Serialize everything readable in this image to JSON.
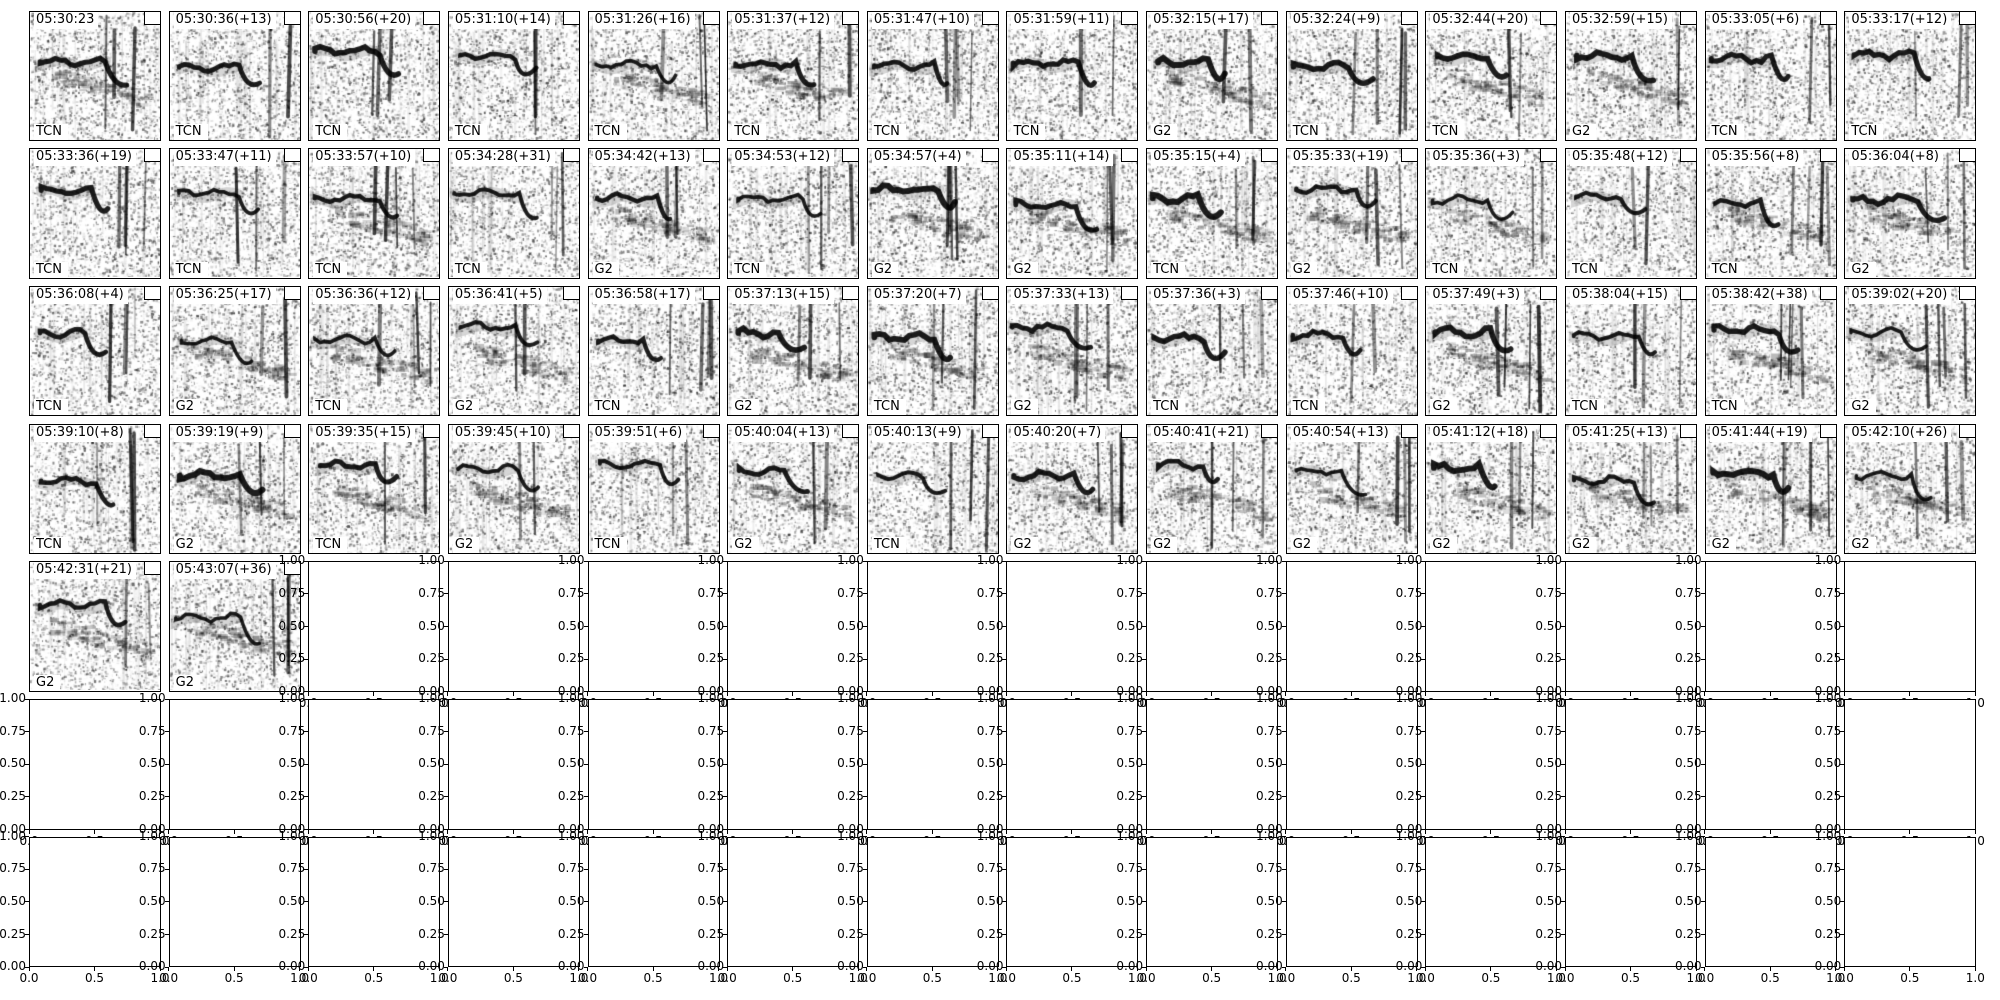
{
  "figure": {
    "background": "#ffffff",
    "frame_color": "#000000",
    "text_color": "#000000",
    "rows": 7,
    "cols": 14,
    "spectrogram_panel_count": 58,
    "empty_panel_count": 40
  },
  "panels": [
    {
      "title": "05:30:23",
      "label": "TCN"
    },
    {
      "title": "05:30:36(+13)",
      "label": "TCN"
    },
    {
      "title": "05:30:56(+20)",
      "label": "TCN"
    },
    {
      "title": "05:31:10(+14)",
      "label": "TCN"
    },
    {
      "title": "05:31:26(+16)",
      "label": "TCN"
    },
    {
      "title": "05:31:37(+12)",
      "label": "TCN"
    },
    {
      "title": "05:31:47(+10)",
      "label": "TCN"
    },
    {
      "title": "05:31:59(+11)",
      "label": "TCN"
    },
    {
      "title": "05:32:15(+17)",
      "label": "G2"
    },
    {
      "title": "05:32:24(+9)",
      "label": "TCN"
    },
    {
      "title": "05:32:44(+20)",
      "label": "TCN"
    },
    {
      "title": "05:32:59(+15)",
      "label": "G2"
    },
    {
      "title": "05:33:05(+6)",
      "label": "TCN"
    },
    {
      "title": "05:33:17(+12)",
      "label": "TCN"
    },
    {
      "title": "05:33:36(+19)",
      "label": "TCN"
    },
    {
      "title": "05:33:47(+11)",
      "label": "TCN"
    },
    {
      "title": "05:33:57(+10)",
      "label": "TCN"
    },
    {
      "title": "05:34:28(+31)",
      "label": "TCN"
    },
    {
      "title": "05:34:42(+13)",
      "label": "G2"
    },
    {
      "title": "05:34:53(+12)",
      "label": "TCN"
    },
    {
      "title": "05:34:57(+4)",
      "label": "G2"
    },
    {
      "title": "05:35:11(+14)",
      "label": "G2"
    },
    {
      "title": "05:35:15(+4)",
      "label": "TCN"
    },
    {
      "title": "05:35:33(+19)",
      "label": "G2"
    },
    {
      "title": "05:35:36(+3)",
      "label": "TCN"
    },
    {
      "title": "05:35:48(+12)",
      "label": "TCN"
    },
    {
      "title": "05:35:56(+8)",
      "label": "TCN"
    },
    {
      "title": "05:36:04(+8)",
      "label": "G2"
    },
    {
      "title": "05:36:08(+4)",
      "label": "TCN"
    },
    {
      "title": "05:36:25(+17)",
      "label": "G2"
    },
    {
      "title": "05:36:36(+12)",
      "label": "TCN"
    },
    {
      "title": "05:36:41(+5)",
      "label": "G2"
    },
    {
      "title": "05:36:58(+17)",
      "label": "TCN"
    },
    {
      "title": "05:37:13(+15)",
      "label": "G2"
    },
    {
      "title": "05:37:20(+7)",
      "label": "TCN"
    },
    {
      "title": "05:37:33(+13)",
      "label": "G2"
    },
    {
      "title": "05:37:36(+3)",
      "label": "TCN"
    },
    {
      "title": "05:37:46(+10)",
      "label": "TCN"
    },
    {
      "title": "05:37:49(+3)",
      "label": "G2"
    },
    {
      "title": "05:38:04(+15)",
      "label": "TCN"
    },
    {
      "title": "05:38:42(+38)",
      "label": "TCN"
    },
    {
      "title": "05:39:02(+20)",
      "label": "G2"
    },
    {
      "title": "05:39:10(+8)",
      "label": "TCN"
    },
    {
      "title": "05:39:19(+9)",
      "label": "G2"
    },
    {
      "title": "05:39:35(+15)",
      "label": "TCN"
    },
    {
      "title": "05:39:45(+10)",
      "label": "G2"
    },
    {
      "title": "05:39:51(+6)",
      "label": "TCN"
    },
    {
      "title": "05:40:04(+13)",
      "label": "G2"
    },
    {
      "title": "05:40:13(+9)",
      "label": "TCN"
    },
    {
      "title": "05:40:20(+7)",
      "label": "G2"
    },
    {
      "title": "05:40:41(+21)",
      "label": "G2"
    },
    {
      "title": "05:40:54(+13)",
      "label": "G2"
    },
    {
      "title": "05:41:12(+18)",
      "label": "G2"
    },
    {
      "title": "05:41:25(+13)",
      "label": "G2"
    },
    {
      "title": "05:41:44(+19)",
      "label": "G2"
    },
    {
      "title": "05:42:10(+26)",
      "label": "G2"
    },
    {
      "title": "05:42:31(+21)",
      "label": "G2"
    },
    {
      "title": "05:43:07(+36)",
      "label": "G2"
    }
  ],
  "empty_axes": {
    "y_tick_labels": [
      "1.00",
      "0.75",
      "0.50",
      "0.25",
      "0.00"
    ],
    "x_tick_labels": [
      "0.0",
      "0.5",
      "1.0"
    ],
    "ylim": [
      0,
      1
    ],
    "xlim": [
      0,
      1
    ]
  },
  "chart_data": {
    "type": "heatmap",
    "description": "Grid of 58 grayscale spectrogram thumbnails (bird-call detections) followed by 40 empty axes",
    "subplot_grid": {
      "rows": 7,
      "cols": 14
    },
    "subplots": [
      {
        "title": "05:30:23",
        "class": "TCN"
      },
      {
        "title": "05:30:36(+13)",
        "class": "TCN"
      },
      {
        "title": "05:30:56(+20)",
        "class": "TCN"
      },
      {
        "title": "05:31:10(+14)",
        "class": "TCN"
      },
      {
        "title": "05:31:26(+16)",
        "class": "TCN"
      },
      {
        "title": "05:31:37(+12)",
        "class": "TCN"
      },
      {
        "title": "05:31:47(+10)",
        "class": "TCN"
      },
      {
        "title": "05:31:59(+11)",
        "class": "TCN"
      },
      {
        "title": "05:32:15(+17)",
        "class": "G2"
      },
      {
        "title": "05:32:24(+9)",
        "class": "TCN"
      },
      {
        "title": "05:32:44(+20)",
        "class": "TCN"
      },
      {
        "title": "05:32:59(+15)",
        "class": "G2"
      },
      {
        "title": "05:33:05(+6)",
        "class": "TCN"
      },
      {
        "title": "05:33:17(+12)",
        "class": "TCN"
      },
      {
        "title": "05:33:36(+19)",
        "class": "TCN"
      },
      {
        "title": "05:33:47(+11)",
        "class": "TCN"
      },
      {
        "title": "05:33:57(+10)",
        "class": "TCN"
      },
      {
        "title": "05:34:28(+31)",
        "class": "TCN"
      },
      {
        "title": "05:34:42(+13)",
        "class": "G2"
      },
      {
        "title": "05:34:53(+12)",
        "class": "TCN"
      },
      {
        "title": "05:34:57(+4)",
        "class": "G2"
      },
      {
        "title": "05:35:11(+14)",
        "class": "G2"
      },
      {
        "title": "05:35:15(+4)",
        "class": "TCN"
      },
      {
        "title": "05:35:33(+19)",
        "class": "G2"
      },
      {
        "title": "05:35:36(+3)",
        "class": "TCN"
      },
      {
        "title": "05:35:48(+12)",
        "class": "TCN"
      },
      {
        "title": "05:35:56(+8)",
        "class": "TCN"
      },
      {
        "title": "05:36:04(+8)",
        "class": "G2"
      },
      {
        "title": "05:36:08(+4)",
        "class": "TCN"
      },
      {
        "title": "05:36:25(+17)",
        "class": "G2"
      },
      {
        "title": "05:36:36(+12)",
        "class": "TCN"
      },
      {
        "title": "05:36:41(+5)",
        "class": "G2"
      },
      {
        "title": "05:36:58(+17)",
        "class": "TCN"
      },
      {
        "title": "05:37:13(+15)",
        "class": "G2"
      },
      {
        "title": "05:37:20(+7)",
        "class": "TCN"
      },
      {
        "title": "05:37:33(+13)",
        "class": "G2"
      },
      {
        "title": "05:37:36(+3)",
        "class": "TCN"
      },
      {
        "title": "05:37:46(+10)",
        "class": "TCN"
      },
      {
        "title": "05:37:49(+3)",
        "class": "G2"
      },
      {
        "title": "05:38:04(+15)",
        "class": "TCN"
      },
      {
        "title": "05:38:42(+38)",
        "class": "TCN"
      },
      {
        "title": "05:39:02(+20)",
        "class": "G2"
      },
      {
        "title": "05:39:10(+8)",
        "class": "TCN"
      },
      {
        "title": "05:39:19(+9)",
        "class": "G2"
      },
      {
        "title": "05:39:35(+15)",
        "class": "TCN"
      },
      {
        "title": "05:39:45(+10)",
        "class": "G2"
      },
      {
        "title": "05:39:51(+6)",
        "class": "TCN"
      },
      {
        "title": "05:40:04(+13)",
        "class": "G2"
      },
      {
        "title": "05:40:13(+9)",
        "class": "TCN"
      },
      {
        "title": "05:40:20(+7)",
        "class": "G2"
      },
      {
        "title": "05:40:41(+21)",
        "class": "G2"
      },
      {
        "title": "05:40:54(+13)",
        "class": "G2"
      },
      {
        "title": "05:41:12(+18)",
        "class": "G2"
      },
      {
        "title": "05:41:25(+13)",
        "class": "G2"
      },
      {
        "title": "05:41:44(+19)",
        "class": "G2"
      },
      {
        "title": "05:42:10(+26)",
        "class": "G2"
      },
      {
        "title": "05:42:31(+21)",
        "class": "G2"
      },
      {
        "title": "05:43:07(+36)",
        "class": "G2"
      }
    ],
    "empty_axes": {
      "count": 40,
      "yticks": [
        0,
        0.25,
        0.5,
        0.75,
        1.0
      ],
      "xticks": [
        0,
        0.5,
        1.0
      ]
    }
  }
}
